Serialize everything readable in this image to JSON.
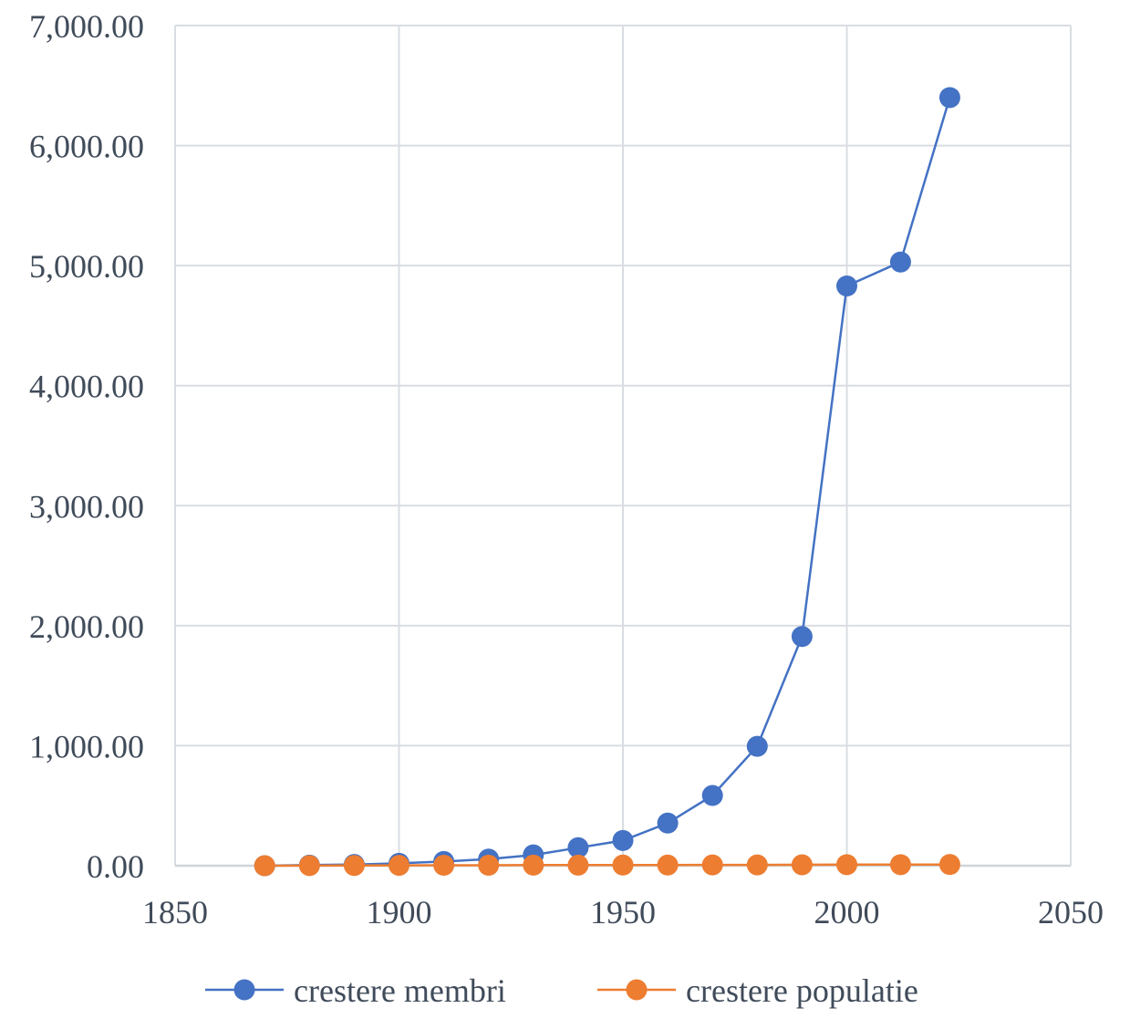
{
  "chart_data": {
    "type": "scatter",
    "title": "",
    "xlabel": "",
    "ylabel": "",
    "xlim": [
      1850,
      2050
    ],
    "ylim": [
      0,
      7000
    ],
    "grid": true,
    "legend_position": "bottom",
    "x_ticks": [
      1850,
      1900,
      1950,
      2000,
      2050
    ],
    "x_tick_labels": [
      "1850",
      "1900",
      "1950",
      "2000",
      "2050"
    ],
    "y_ticks": [
      0,
      1000,
      2000,
      3000,
      4000,
      5000,
      6000,
      7000
    ],
    "y_tick_labels": [
      "0.00",
      "1,000.00",
      "2,000.00",
      "3,000.00",
      "4,000.00",
      "5,000.00",
      "6,000.00",
      "7,000.00"
    ],
    "series": [
      {
        "name": "crestere membri",
        "color": "#4472c4",
        "x": [
          1870,
          1880,
          1890,
          1900,
          1910,
          1920,
          1930,
          1940,
          1950,
          1960,
          1970,
          1980,
          1990,
          2000,
          2012,
          2023
        ],
        "y": [
          0,
          5,
          10,
          20,
          35,
          55,
          90,
          150,
          210,
          355,
          585,
          995,
          1910,
          4830,
          5030,
          6400
        ]
      },
      {
        "name": "crestere populatie",
        "color": "#ed7d31",
        "x": [
          1870,
          1880,
          1890,
          1900,
          1910,
          1920,
          1930,
          1940,
          1950,
          1960,
          1970,
          1980,
          1990,
          2000,
          2012,
          2023
        ],
        "y": [
          0,
          1,
          2,
          3,
          4,
          4,
          5,
          5,
          6,
          6,
          7,
          7,
          8,
          9,
          9,
          10
        ]
      }
    ]
  }
}
